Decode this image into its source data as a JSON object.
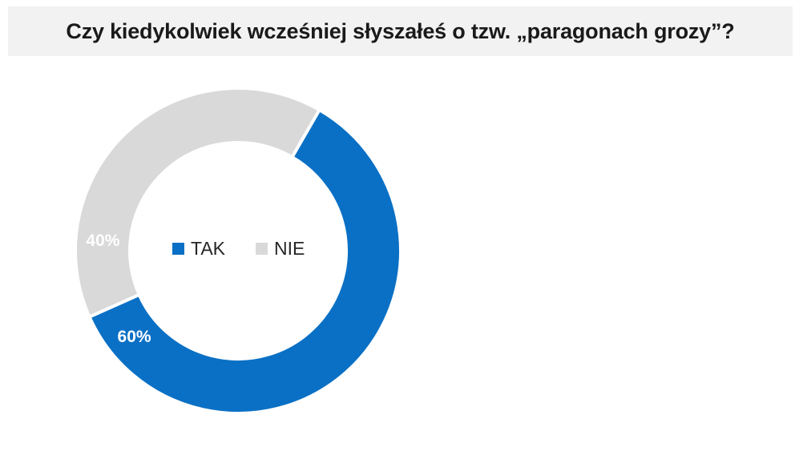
{
  "title": "Czy kiedykolwiek wcześniej słyszałeś o tzw. „paragonach grozy”?",
  "chart_data": {
    "type": "pie",
    "title": "Czy kiedykolwiek wcześniej słyszałeś o tzw. „paragonach grozy”?",
    "categories": [
      "TAK",
      "NIE"
    ],
    "values": [
      60,
      40
    ],
    "data_labels": [
      "60%",
      "40%"
    ],
    "colors": [
      "#0a70c5",
      "#d9d9d9"
    ],
    "legend_position": "center",
    "donut": true
  }
}
